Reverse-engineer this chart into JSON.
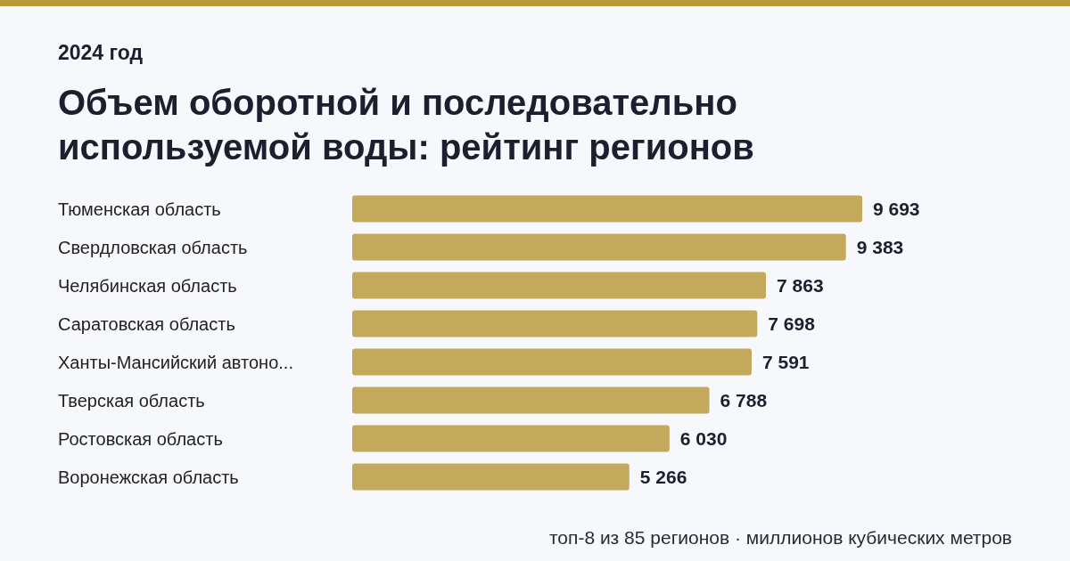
{
  "chart_data": {
    "type": "bar",
    "orientation": "horizontal",
    "title": "Объем оборотной и последовательно используемой воды: рейтинг регионов",
    "subtitle": "2024 год",
    "categories": [
      "Тюменская область",
      "Свердловская область",
      "Челябинская область",
      "Саратовская область",
      "Ханты-Мансийский автоно...",
      "Тверская область",
      "Ростовская область",
      "Воронежская область"
    ],
    "values": [
      9693,
      9383,
      7863,
      7698,
      7591,
      6788,
      6030,
      5266
    ],
    "color": "#c4a95c",
    "data_labels": true,
    "annotations": [
      "топ-8 из 85 регионов · миллионов кубических метров"
    ]
  }
}
